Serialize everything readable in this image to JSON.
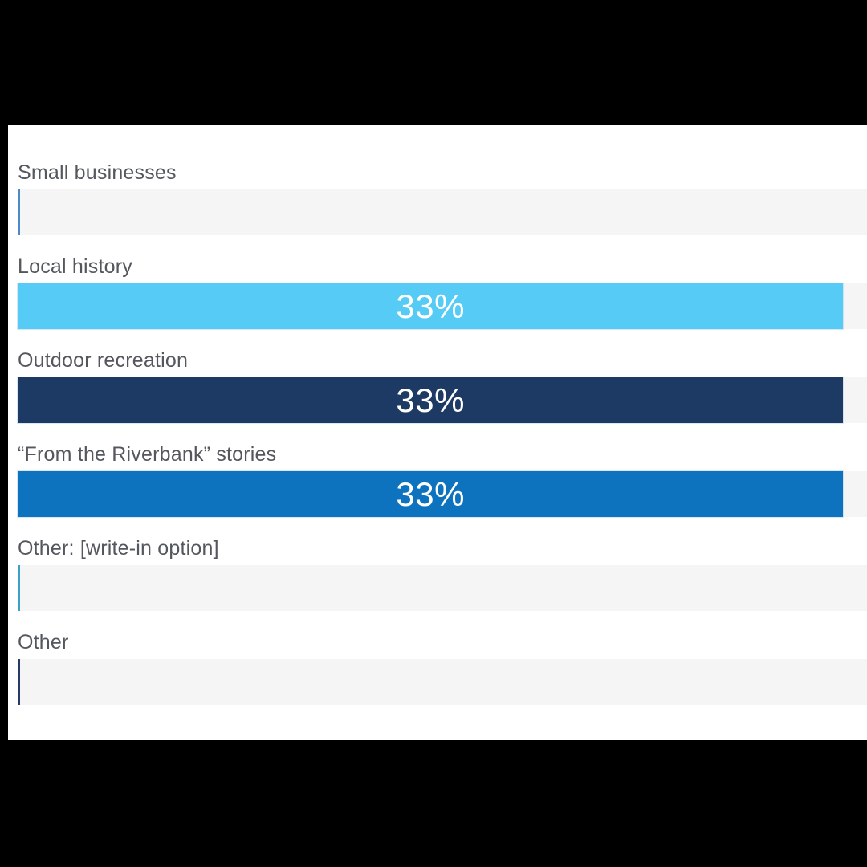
{
  "chart_data": {
    "type": "bar",
    "orientation": "horizontal",
    "title": "",
    "categories": [
      "Small businesses",
      "Local history",
      "Outdoor recreation",
      "“From the Riverbank” stories",
      "Other: [write-in option]",
      "Other"
    ],
    "values": [
      0,
      33,
      33,
      33,
      0,
      0
    ],
    "value_labels": [
      "",
      "33%",
      "33%",
      "33%",
      "",
      ""
    ],
    "series_colors": [
      "#4a8ac9",
      "#55cbf5",
      "#1c3a64",
      "#0e73be",
      "#3aa2c9",
      "#283a68"
    ],
    "track_color": "#f5f5f6",
    "label_color": "#54575e",
    "value_text_color": "#ffffff",
    "max_value": 33,
    "grid": false,
    "legend": "none"
  }
}
